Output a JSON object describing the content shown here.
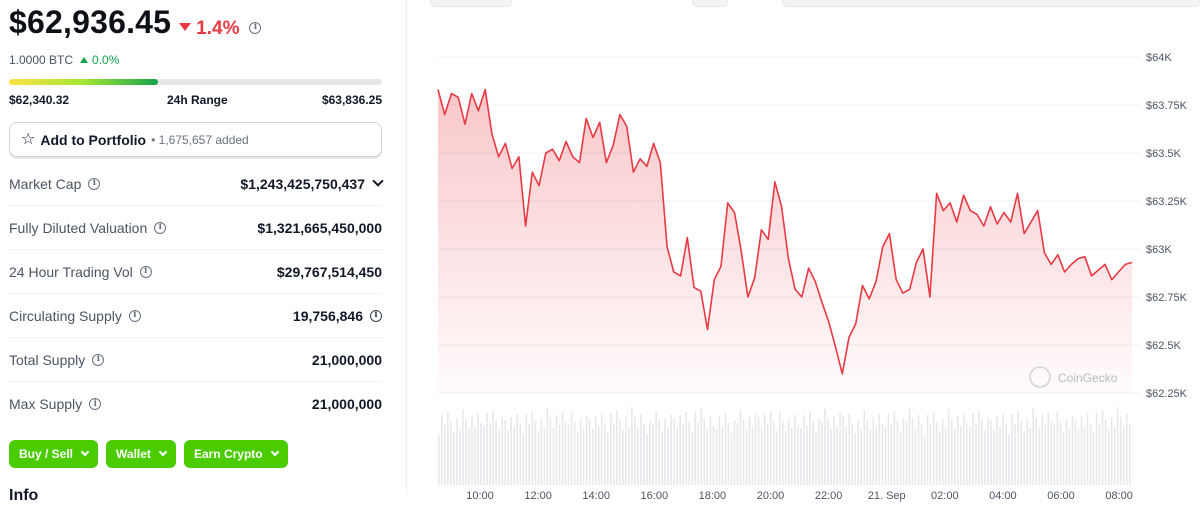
{
  "price": {
    "current": "$62,936.45",
    "change_pct": "1.4%",
    "btc_value": "1.0000 BTC",
    "btc_change": "0.0%"
  },
  "range_24h": {
    "low": "$62,340.32",
    "label": "24h Range",
    "high": "$63,836.25",
    "position_fraction": 0.4
  },
  "portfolio": {
    "label": "Add to Portfolio",
    "added": "• 1,675,657 added"
  },
  "stats": [
    {
      "label": "Market Cap",
      "value": "$1,243,425,750,437"
    },
    {
      "label": "Fully Diluted Valuation",
      "value": "$1,321,665,450,000"
    },
    {
      "label": "24 Hour Trading Vol",
      "value": "$29,767,514,450"
    },
    {
      "label": "Circulating Supply",
      "value": "19,756,846"
    },
    {
      "label": "Total Supply",
      "value": "21,000,000"
    },
    {
      "label": "Max Supply",
      "value": "21,000,000"
    }
  ],
  "actions": [
    {
      "label": "Buy / Sell"
    },
    {
      "label": "Wallet"
    },
    {
      "label": "Earn Crypto"
    }
  ],
  "cut_heading": "Info",
  "colors": {
    "negative": "#ea3943",
    "positive": "#16a34a",
    "action_green": "#4bcc00",
    "line": "#ea3943"
  },
  "chart_data": {
    "type": "area",
    "watermark": "CoinGecko",
    "y_axis": {
      "ticks": [
        "$64K",
        "$63.75K",
        "$63.5K",
        "$63.25K",
        "$63K",
        "$62.75K",
        "$62.5K",
        "$62.25K"
      ],
      "tick_values": [
        64000,
        63750,
        63500,
        63250,
        63000,
        62750,
        62500,
        62250
      ],
      "ylim": [
        62250,
        64000
      ]
    },
    "x_axis": {
      "ticks": [
        "10:00",
        "12:00",
        "14:00",
        "16:00",
        "18:00",
        "20:00",
        "22:00",
        "21. Sep",
        "02:00",
        "04:00",
        "06:00",
        "08:00"
      ]
    },
    "series": [
      {
        "values": [
          63830,
          63700,
          63810,
          63790,
          63650,
          63810,
          63720,
          63830,
          63600,
          63480,
          63550,
          63420,
          63480,
          63120,
          63400,
          63330,
          63500,
          63520,
          63460,
          63560,
          63480,
          63450,
          63680,
          63580,
          63660,
          63450,
          63540,
          63700,
          63640,
          63400,
          63470,
          63430,
          63550,
          63450,
          63010,
          62880,
          62860,
          63060,
          62800,
          62780,
          62580,
          62840,
          62910,
          63240,
          63190,
          62990,
          62750,
          62850,
          63100,
          63050,
          63350,
          63220,
          62950,
          62790,
          62750,
          62900,
          62830,
          62720,
          62620,
          62490,
          62350,
          62540,
          62610,
          62810,
          62740,
          62830,
          63010,
          63080,
          62840,
          62770,
          62790,
          62930,
          63000,
          62750,
          63290,
          63200,
          63240,
          63140,
          63280,
          63200,
          63180,
          63120,
          63220,
          63130,
          63190,
          63140,
          63290,
          63080,
          63140,
          63200,
          62980,
          62920,
          62970,
          62880,
          62920,
          62950,
          62960,
          62860,
          62890,
          62920,
          62840,
          62880,
          62920,
          62930
        ]
      }
    ],
    "volume_bars": "present",
    "grid": true
  }
}
